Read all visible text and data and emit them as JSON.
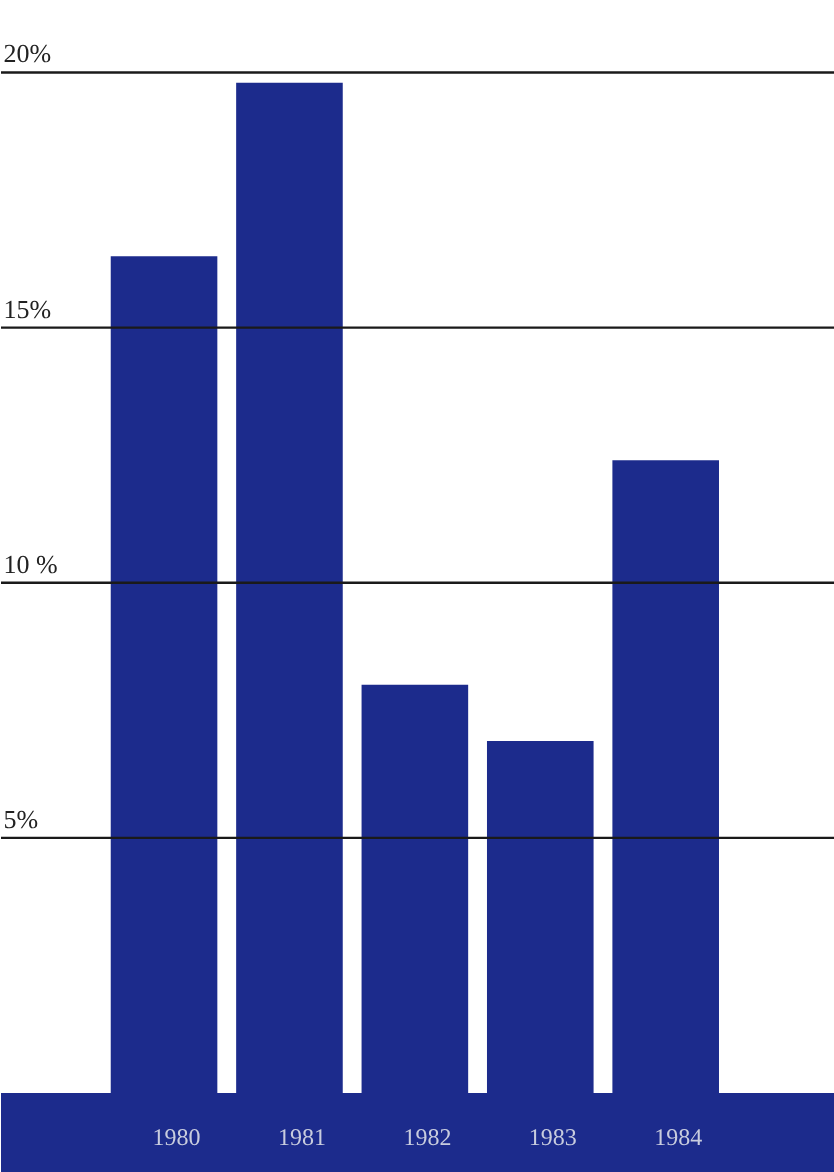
{
  "chart_data": {
    "type": "bar",
    "categories": [
      "1980",
      "1981",
      "1982",
      "1983",
      "1984"
    ],
    "values": [
      16.4,
      19.8,
      8.0,
      6.9,
      12.4
    ],
    "color": "#1c2b8c",
    "ylim": [
      0,
      21.4
    ],
    "yticks": [
      {
        "value": 5,
        "label": "5%"
      },
      {
        "value": 10,
        "label": "10 %"
      },
      {
        "value": 15,
        "label": "15%"
      },
      {
        "value": 20,
        "label": "20%"
      }
    ],
    "grid": "y"
  }
}
